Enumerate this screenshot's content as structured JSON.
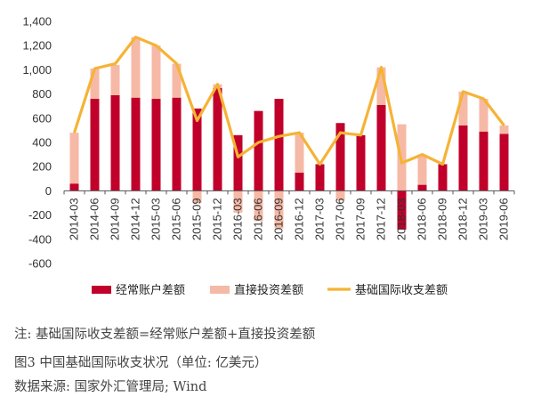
{
  "chart_data": {
    "type": "bar",
    "stacked": true,
    "categories": [
      "2014-03",
      "2014-06",
      "2014-09",
      "2014-12",
      "2015-03",
      "2015-06",
      "2015-09",
      "2015-12",
      "2016-03",
      "2016-06",
      "2016-09",
      "2016-12",
      "2017-03",
      "2017-06",
      "2017-09",
      "2017-12",
      "2018-03",
      "2018-06",
      "2018-09",
      "2018-12",
      "2019-03",
      "2019-06"
    ],
    "series": [
      {
        "name": "经常账户差额",
        "kind": "bar",
        "color": "#c0002a",
        "values": [
          60,
          760,
          790,
          770,
          760,
          770,
          680,
          850,
          460,
          660,
          760,
          150,
          220,
          560,
          460,
          710,
          -320,
          50,
          220,
          540,
          490,
          470
        ]
      },
      {
        "name": "直接投资差额",
        "kind": "bar",
        "color": "#f6b9a6",
        "values": [
          420,
          250,
          250,
          500,
          440,
          280,
          -100,
          30,
          -180,
          -250,
          -310,
          330,
          0,
          -80,
          0,
          310,
          550,
          250,
          0,
          280,
          270,
          70
        ]
      },
      {
        "name": "基础国际收支差额",
        "kind": "line",
        "color": "#f5b335",
        "values": [
          480,
          1010,
          1050,
          1270,
          1200,
          1050,
          580,
          880,
          280,
          400,
          450,
          480,
          220,
          480,
          460,
          1020,
          230,
          300,
          220,
          820,
          760,
          540
        ]
      }
    ],
    "y_ticks": [
      "1,400",
      "1,200",
      "1,000",
      "800",
      "600",
      "400",
      "200",
      "0",
      "-200",
      "-400",
      "-600"
    ],
    "ylim": [
      -600,
      1400
    ],
    "legend_position": "bottom",
    "grid": false
  },
  "note": "注: 基础国际收支差额=经常账户差额+直接投资差额",
  "figure_caption": "图3   中国基础国际收支状况（单位: 亿美元）",
  "source": "数据来源: 国家外汇管理局; Wind"
}
